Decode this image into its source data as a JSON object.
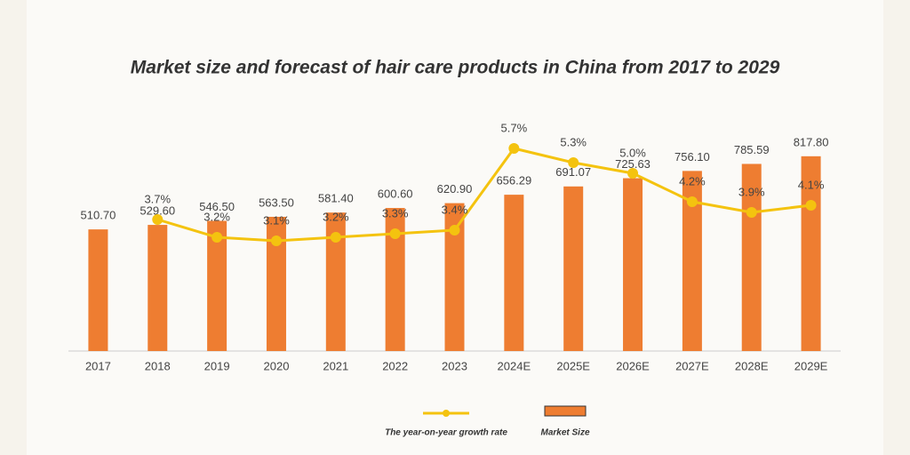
{
  "chart_data": {
    "type": "bar",
    "title": "Market size and forecast of hair care products in China from 2017 to 2029",
    "categories": [
      "2017",
      "2018",
      "2019",
      "2020",
      "2021",
      "2022",
      "2023",
      "2024E",
      "2025E",
      "2026E",
      "2027E",
      "2028E",
      "2029E"
    ],
    "series": [
      {
        "name": "Market Size",
        "type": "bar",
        "color": "#ee7d31",
        "values": [
          510.7,
          529.6,
          546.5,
          563.5,
          581.4,
          600.6,
          620.9,
          656.29,
          691.07,
          725.63,
          756.1,
          785.59,
          817.8
        ],
        "value_labels": [
          "510.70",
          "529.60",
          "546.50",
          "563.50",
          "581.40",
          "600.60",
          "620.90",
          "656.29",
          "691.07",
          "725.63",
          "756.10",
          "785.59",
          "817.80"
        ]
      },
      {
        "name": "The year-on-year growth rate",
        "type": "line",
        "axis": "y2",
        "color": "#f4c30f",
        "values": [
          null,
          3.7,
          3.2,
          3.1,
          3.2,
          3.3,
          3.4,
          5.7,
          5.3,
          5.0,
          4.2,
          3.9,
          4.1
        ],
        "value_labels": [
          null,
          "3.7%",
          "3.2%",
          "3.1%",
          "3.2%",
          "3.3%",
          "3.4%",
          "5.7%",
          "5.3%",
          "5.0%",
          "4.2%",
          "3.9%",
          "4.1%"
        ]
      }
    ],
    "ylim": [
      0,
      1000
    ],
    "y2lim": [
      0,
      6.7
    ],
    "grid": false
  }
}
